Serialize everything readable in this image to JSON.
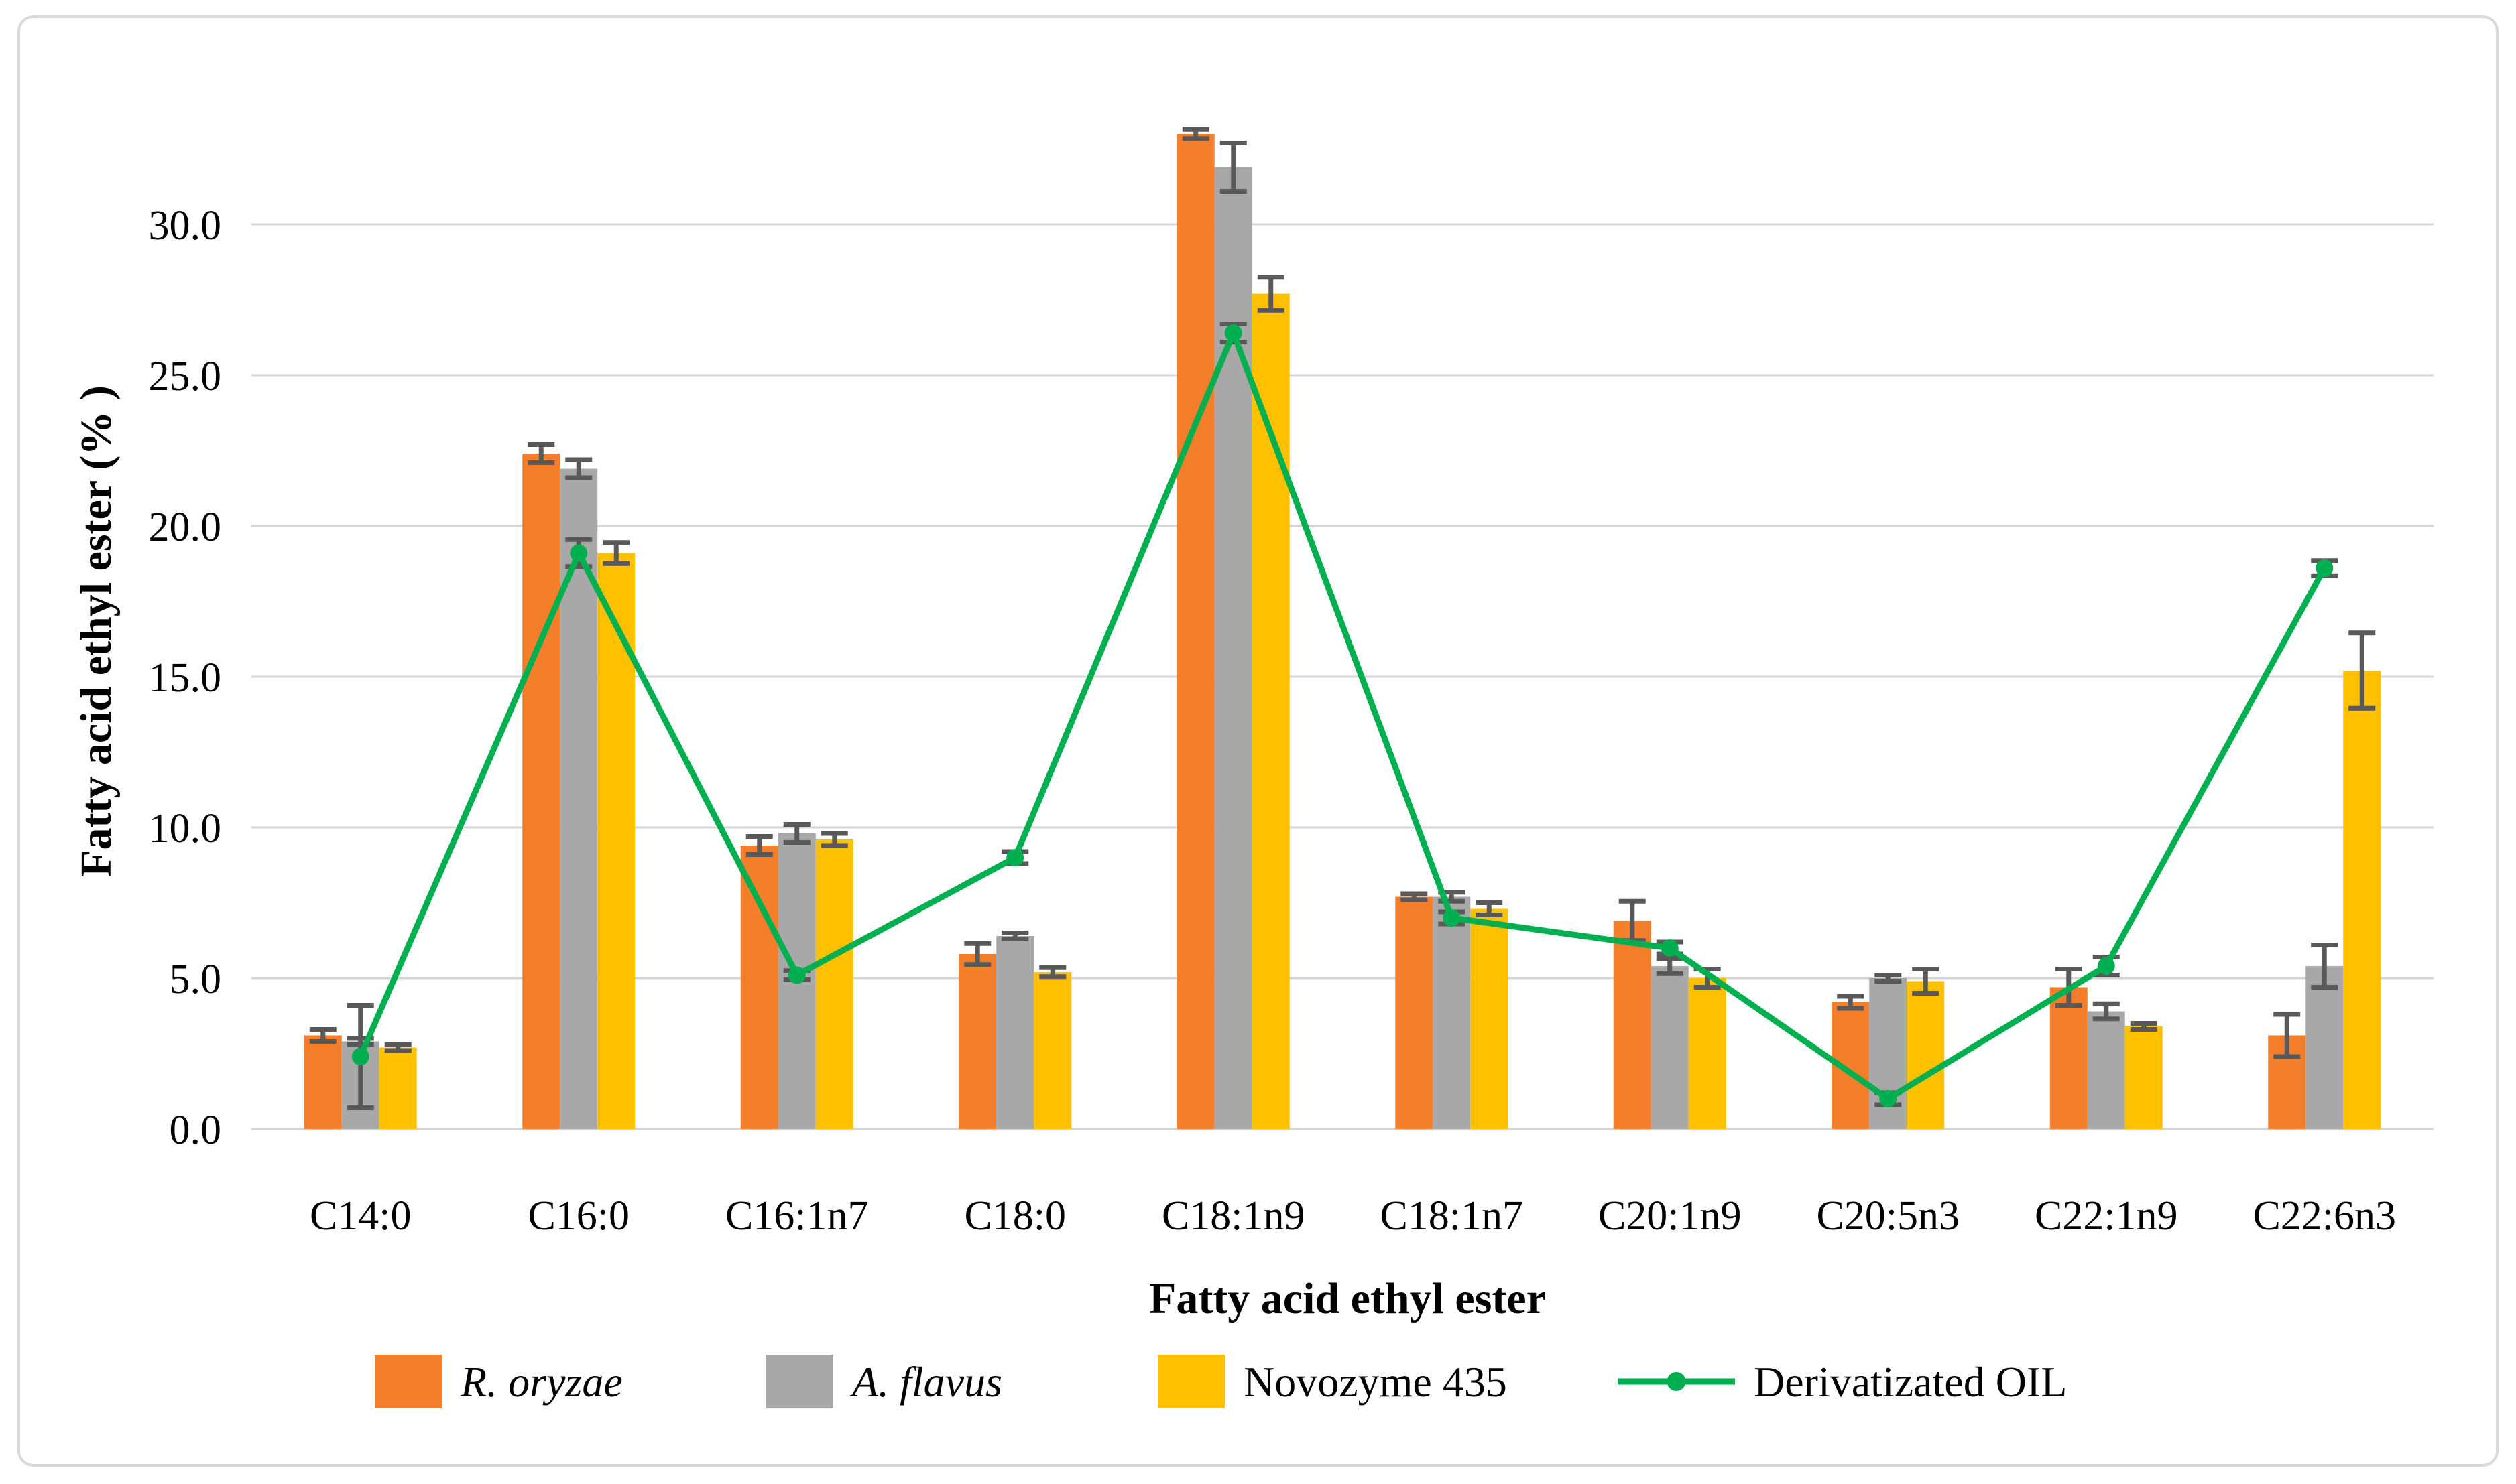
{
  "figure": {
    "border_color": "#d9d9d9",
    "background": "#ffffff"
  },
  "chart_data": {
    "type": "bar+line",
    "title": "",
    "xlabel": "Fatty acid ethyl ester",
    "ylabel": "Fatty acid ethyl ester (% )",
    "categories": [
      "C14:0",
      "C16:0",
      "C16:1n7",
      "C18:0",
      "C18:1n9",
      "C18:1n7",
      "C20:1n9",
      "C20:5n3",
      "C22:1n9",
      "C22:6n3"
    ],
    "ylim": [
      0,
      33.5
    ],
    "yticks": [
      0,
      5,
      10,
      15,
      20,
      25,
      30
    ],
    "ytick_labels": [
      "0.0",
      "5.0",
      "10.0",
      "15.0",
      "20.0",
      "25.0",
      "30.0"
    ],
    "grid": true,
    "gridline_color": "#d6d6d6",
    "error_bar_color": "#595959",
    "legend_position": "bottom",
    "series": [
      {
        "name": "R. oryzae",
        "type": "bar",
        "italic": true,
        "color": "#F57E2A",
        "values": [
          3.1,
          22.4,
          9.4,
          5.8,
          33.0,
          7.7,
          6.9,
          4.2,
          4.7,
          3.1
        ],
        "errors": [
          0.2,
          0.3,
          0.3,
          0.35,
          0.15,
          0.1,
          0.65,
          0.2,
          0.6,
          0.7
        ]
      },
      {
        "name": "A. flavus",
        "type": "bar",
        "italic": true,
        "color": "#A8A8A8",
        "values": [
          2.9,
          21.9,
          9.8,
          6.4,
          31.9,
          7.7,
          5.4,
          5.0,
          3.9,
          5.4
        ],
        "errors": [
          0.1,
          0.3,
          0.3,
          0.1,
          0.8,
          0.15,
          0.25,
          0.1,
          0.25,
          0.7
        ]
      },
      {
        "name": "Novozyme 435",
        "type": "bar",
        "italic": false,
        "color": "#FFC000",
        "values": [
          2.7,
          19.1,
          9.6,
          5.2,
          27.7,
          7.3,
          5.0,
          4.9,
          3.4,
          15.2
        ],
        "errors": [
          0.1,
          0.35,
          0.2,
          0.15,
          0.55,
          0.2,
          0.3,
          0.4,
          0.1,
          1.25
        ]
      },
      {
        "name": "Derivatizated OIL",
        "type": "line",
        "italic": false,
        "color": "#00B050",
        "values": [
          2.4,
          19.1,
          5.1,
          9.0,
          26.4,
          7.0,
          6.0,
          1.0,
          5.4,
          18.6
        ],
        "errors": [
          1.7,
          0.45,
          0.15,
          0.2,
          0.3,
          0.2,
          0.2,
          0.2,
          0.3,
          0.25
        ]
      }
    ]
  }
}
